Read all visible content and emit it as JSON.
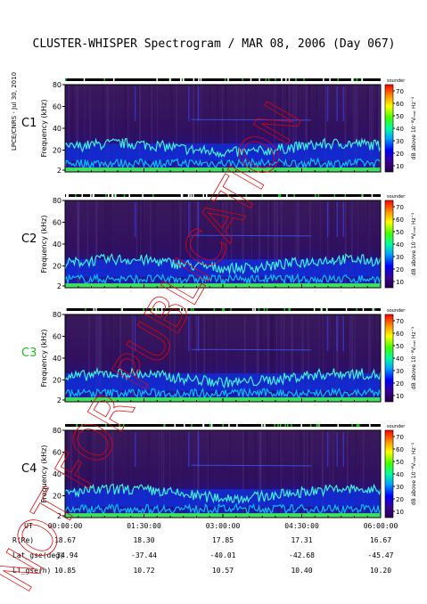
{
  "chart_data": {
    "type": "heatmap",
    "title": "CLUSTER-WHISPER Spectrogram / MAR 08, 2006 (Day 067)",
    "side_label": "LPCE/CNRS - Jul 30, 2010",
    "ylabel": "Frequency (kHz)",
    "ylim": [
      0,
      80
    ],
    "y_ticks": [
      "2",
      "20",
      "40",
      "60",
      "80"
    ],
    "colorbar_label": "dB above 10⁻⁸Vₘₐₜ Hz⁻¹",
    "colorbar_ticks": [
      "10",
      "20",
      "30",
      "40",
      "50",
      "60",
      "70"
    ],
    "colorbar_range": [
      5,
      75
    ],
    "mode_label": "sounder",
    "watermark": "NOT FOR PUBLICATION",
    "series": [
      {
        "name": "C1",
        "color": "#000000"
      },
      {
        "name": "C2",
        "color": "#000000"
      },
      {
        "name": "C3",
        "color": "#22bb22"
      },
      {
        "name": "C4",
        "color": "#000000"
      }
    ],
    "x_axis": {
      "row_labels": [
        "UT",
        "R(Re)",
        "Lat_gse(deg)",
        "LT_gse(h)"
      ],
      "ticks": [
        {
          "ut": "00:00:00",
          "r": "18.67",
          "lat": "-34.94",
          "lt": "10.85"
        },
        {
          "ut": "01:30:00",
          "r": "18.30",
          "lat": "-37.44",
          "lt": "10.72"
        },
        {
          "ut": "03:00:00",
          "r": "17.85",
          "lat": "-40.01",
          "lt": "10.57"
        },
        {
          "ut": "04:30:00",
          "r": "17.31",
          "lat": "-42.68",
          "lt": "10.40"
        },
        {
          "ut": "06:00:00",
          "r": "16.67",
          "lat": "-45.47",
          "lt": "10.20"
        }
      ]
    }
  }
}
